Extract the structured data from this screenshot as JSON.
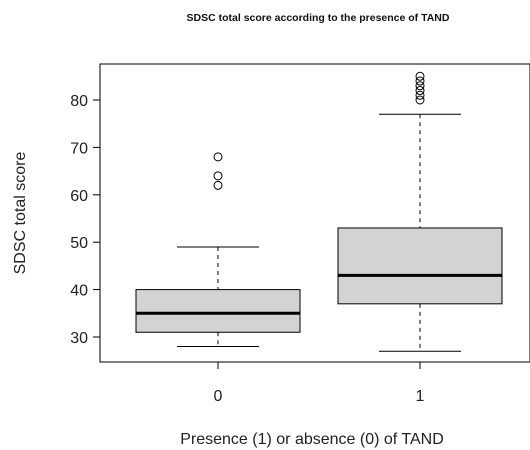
{
  "chart_data": {
    "type": "boxplot",
    "title": "SDSC total score according to the presence of TAND",
    "xlabel": "Presence (1) or absence (0) of TAND",
    "ylabel": "SDSC total score",
    "categories": [
      "0",
      "1"
    ],
    "ylim": [
      25,
      87
    ],
    "yticks": [
      30,
      40,
      50,
      60,
      70,
      80
    ],
    "grid": false,
    "legend": "none",
    "box_fill": "#d3d3d3",
    "line_color": "#000000",
    "boxes": [
      {
        "category": "0",
        "whisker_low": 28,
        "q1": 31,
        "median": 35,
        "q3": 40,
        "whisker_high": 49,
        "outliers": [
          62,
          64,
          68
        ]
      },
      {
        "category": "1",
        "whisker_low": 27,
        "q1": 37,
        "median": 43,
        "q3": 53,
        "whisker_high": 77,
        "outliers": [
          80,
          81,
          82,
          83,
          84,
          85
        ]
      }
    ]
  }
}
